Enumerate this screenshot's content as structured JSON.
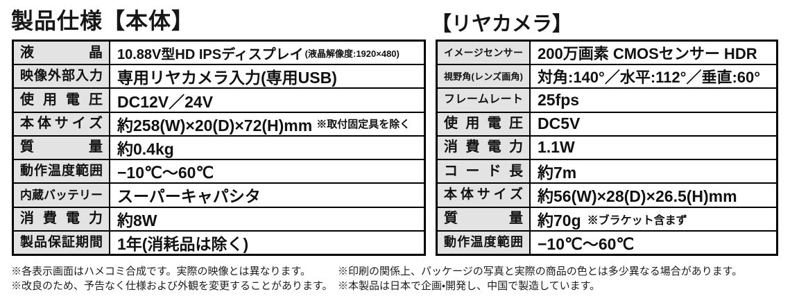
{
  "titles": {
    "main": "製品仕様【本体】",
    "rear": "【リヤカメラ】"
  },
  "main_table": {
    "rows": [
      {
        "label": "液晶",
        "value": "10.88V型HD IPSディスプレイ",
        "note": "(液晶解像度:1920×480)"
      },
      {
        "label": "映像外部入力",
        "value": "専用リヤカメラ入力(専用USB)"
      },
      {
        "label": "使用電圧",
        "value": "DC12V／24V"
      },
      {
        "label": "本体サイズ",
        "value": "約258(W)×20(D)×72(H)mm",
        "note": "※取付固定具を除く"
      },
      {
        "label": "質量",
        "value": "約0.4kg"
      },
      {
        "label": "動作温度範囲",
        "value": "−10℃～60℃"
      },
      {
        "label": "内蔵バッテリー",
        "value": "スーパーキャパシタ"
      },
      {
        "label": "消費電力",
        "value": "約8W"
      },
      {
        "label": "製品保証期間",
        "value": "1年(消耗品は除く)"
      }
    ]
  },
  "rear_table": {
    "rows": [
      {
        "label": "イメージセンサー",
        "value": "200万画素 CMOSセンサー HDR"
      },
      {
        "label": "視野角(レンズ画角)",
        "value": "対角:140°／水平:112°／垂直:60°"
      },
      {
        "label": "フレームレート",
        "value": "25fps"
      },
      {
        "label": "使用電圧",
        "value": "DC5V"
      },
      {
        "label": "消費電力",
        "value": "1.1W"
      },
      {
        "label": "コード長",
        "value": "約7m"
      },
      {
        "label": "本体サイズ",
        "value": "約56(W)×28(D)×26.5(H)mm"
      },
      {
        "label": "質量",
        "value": "約70g",
        "note": "※ブラケット含まず"
      },
      {
        "label": "動作温度範囲",
        "value": "−10℃～60℃"
      }
    ]
  },
  "footnotes": {
    "left": [
      "※各表示画面はハメコミ合成です。実際の映像とは異なります。",
      "※改良のため、予告なく仕様および外観を変更することがあります。"
    ],
    "right": [
      "※印刷の関係上、パッケージの写真と実際の商品の色とは多少異なる場合があります。",
      "※本製品は日本で企画・開発し、中国で製造しています。"
    ]
  },
  "colors": {
    "label_background": "#e3e3e3",
    "border": "#000000",
    "text": "#111111",
    "page_background": "#ffffff"
  }
}
